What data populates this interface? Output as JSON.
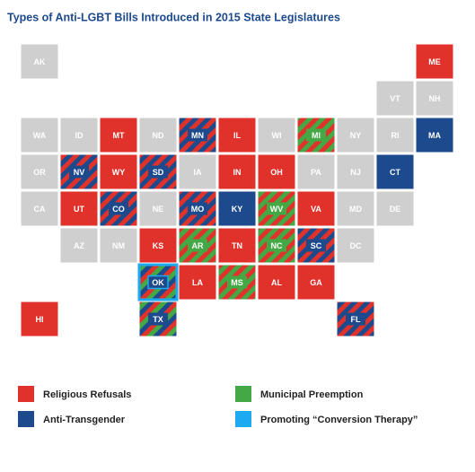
{
  "title": "Types of Anti-LGBT Bills Introduced in 2015 State Legislatures",
  "legend": [
    {
      "label": "Religious Refusals",
      "color": "#e0322b"
    },
    {
      "label": "Municipal Preemption",
      "color": "#44a845"
    },
    {
      "label": "Anti-Transgender",
      "color": "#1d4a8c"
    },
    {
      "label": "Promoting “Conversion Therapy”",
      "color": "#1eaaf1"
    }
  ],
  "none_color": "#cfcfcf",
  "states": [
    {
      "label": "AK",
      "types": []
    },
    {
      "label": "ME",
      "types": [
        0
      ]
    },
    {
      "label": "VT",
      "types": []
    },
    {
      "label": "NH",
      "types": []
    },
    {
      "label": "WA",
      "types": []
    },
    {
      "label": "ID",
      "types": []
    },
    {
      "label": "MT",
      "types": [
        0
      ]
    },
    {
      "label": "ND",
      "types": []
    },
    {
      "label": "MN",
      "types": [
        0,
        2
      ]
    },
    {
      "label": "IL",
      "types": [
        0
      ]
    },
    {
      "label": "WI",
      "types": []
    },
    {
      "label": "MI",
      "types": [
        0,
        1
      ]
    },
    {
      "label": "NY",
      "types": []
    },
    {
      "label": "RI",
      "types": []
    },
    {
      "label": "MA",
      "types": [
        2
      ]
    },
    {
      "label": "OR",
      "types": []
    },
    {
      "label": "NV",
      "types": [
        0,
        2
      ]
    },
    {
      "label": "WY",
      "types": [
        0
      ]
    },
    {
      "label": "SD",
      "types": [
        0,
        2
      ]
    },
    {
      "label": "IA",
      "types": []
    },
    {
      "label": "IN",
      "types": [
        0
      ]
    },
    {
      "label": "OH",
      "types": [
        0
      ]
    },
    {
      "label": "PA",
      "types": []
    },
    {
      "label": "NJ",
      "types": []
    },
    {
      "label": "CT",
      "types": [
        2
      ]
    },
    {
      "label": "CA",
      "types": []
    },
    {
      "label": "UT",
      "types": [
        0
      ]
    },
    {
      "label": "CO",
      "types": [
        0,
        2
      ]
    },
    {
      "label": "NE",
      "types": []
    },
    {
      "label": "MO",
      "types": [
        0,
        2
      ]
    },
    {
      "label": "KY",
      "types": [
        2
      ]
    },
    {
      "label": "WV",
      "types": [
        0,
        1
      ]
    },
    {
      "label": "VA",
      "types": [
        0
      ]
    },
    {
      "label": "MD",
      "types": []
    },
    {
      "label": "DE",
      "types": []
    },
    {
      "label": "AZ",
      "types": []
    },
    {
      "label": "NM",
      "types": []
    },
    {
      "label": "KS",
      "types": [
        0
      ]
    },
    {
      "label": "AR",
      "types": [
        0,
        1
      ]
    },
    {
      "label": "TN",
      "types": [
        0
      ]
    },
    {
      "label": "NC",
      "types": [
        0,
        1
      ]
    },
    {
      "label": "SC",
      "types": [
        0,
        2
      ]
    },
    {
      "label": "DC",
      "types": []
    },
    {
      "label": "OK",
      "types": [
        0,
        1,
        2,
        3
      ]
    },
    {
      "label": "LA",
      "types": [
        0
      ]
    },
    {
      "label": "MS",
      "types": [
        0,
        1
      ]
    },
    {
      "label": "AL",
      "types": [
        0
      ]
    },
    {
      "label": "GA",
      "types": [
        0
      ]
    },
    {
      "label": "HI",
      "types": [
        0
      ]
    },
    {
      "label": "TX",
      "types": [
        0,
        1,
        2
      ]
    },
    {
      "label": "FL",
      "types": [
        0,
        2
      ]
    }
  ]
}
